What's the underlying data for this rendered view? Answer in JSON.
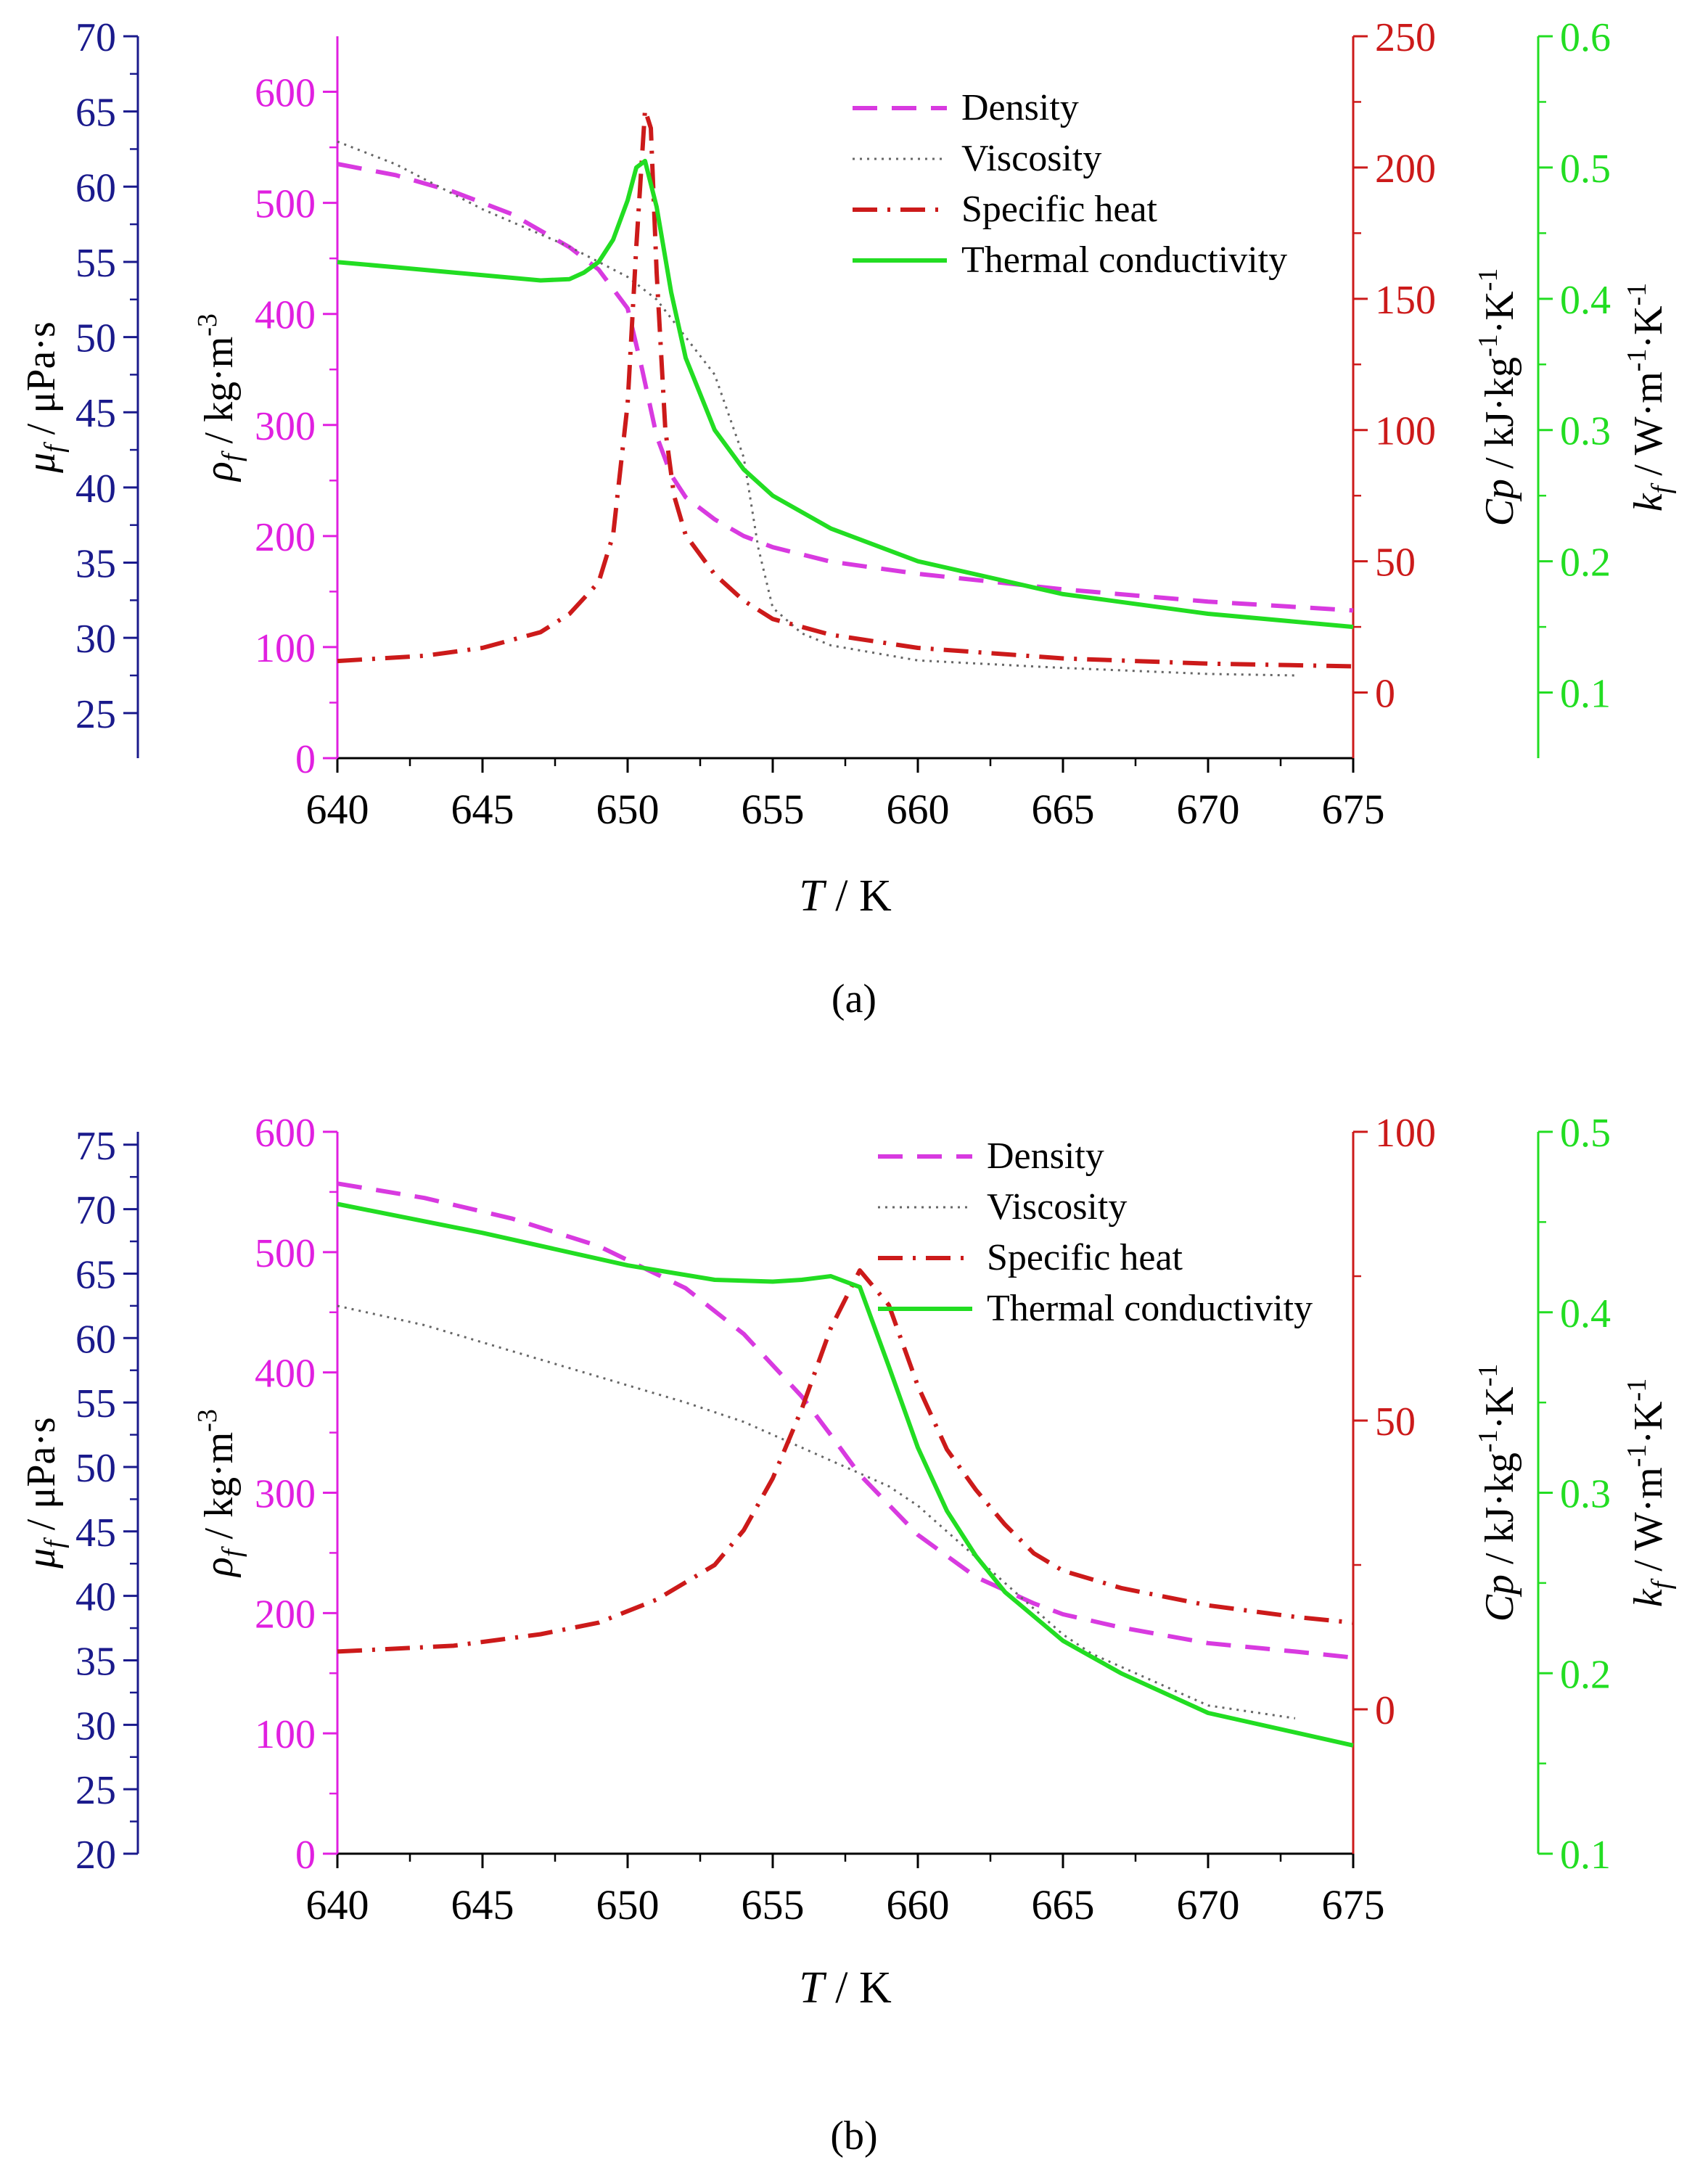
{
  "chart_data": [
    {
      "panel": "(a)",
      "type": "line",
      "xlabel": "T / K",
      "xlim": [
        640,
        675
      ],
      "xticks": [
        "640",
        "645",
        "650",
        "655",
        "660",
        "665",
        "670",
        "675"
      ],
      "axes": [
        {
          "id": "mu",
          "label": "μf / μPa·s",
          "color": "#1a1a8c",
          "range": [
            22,
            70
          ],
          "ticks": [
            "25",
            "30",
            "35",
            "40",
            "45",
            "50",
            "55",
            "60",
            "65",
            "70"
          ]
        },
        {
          "id": "rho",
          "label": "ρf / kg·m-3",
          "color": "#e020e0",
          "range": [
            0,
            650
          ],
          "ticks": [
            "0",
            "100",
            "200",
            "300",
            "400",
            "500",
            "600"
          ]
        },
        {
          "id": "cp",
          "label": "Cp / kJ·kg-1·K-1",
          "color": "#cc1a1a",
          "range": [
            -25,
            250
          ],
          "ticks": [
            "0",
            "50",
            "100",
            "150",
            "200",
            "250"
          ]
        },
        {
          "id": "k",
          "label": "kf / W·m-1·K-1",
          "color": "#22dd22",
          "range": [
            0.05,
            0.6
          ],
          "ticks": [
            "0.1",
            "0.2",
            "0.3",
            "0.4",
            "0.5",
            "0.6"
          ]
        }
      ],
      "series": [
        {
          "name": "Density",
          "axis": "rho",
          "color": "#d83ae0",
          "dash": "dash",
          "x": [
            640,
            642,
            644,
            646,
            648,
            649,
            650,
            650.5,
            651,
            651.5,
            652,
            653,
            654,
            655,
            657,
            660,
            665,
            670,
            675
          ],
          "y": [
            535,
            525,
            510,
            490,
            460,
            440,
            405,
            350,
            290,
            255,
            235,
            215,
            200,
            190,
            177,
            166,
            152,
            141,
            133
          ]
        },
        {
          "name": "Viscosity",
          "axis": "mu",
          "color": "#666666",
          "dash": "dot",
          "x": [
            640,
            642,
            645,
            648,
            650,
            651,
            652,
            653,
            654,
            654.5,
            655,
            656,
            657,
            660,
            665,
            670,
            673
          ],
          "y": [
            63,
            61.5,
            58.5,
            56,
            54,
            52.5,
            50,
            47.5,
            42,
            36,
            32,
            30.3,
            29.5,
            28.5,
            28,
            27.6,
            27.5
          ]
        },
        {
          "name": "Specific heat",
          "axis": "cp",
          "color": "#cc1a1a",
          "dash": "dashdot",
          "x": [
            640,
            643,
            645,
            647,
            648,
            649,
            649.5,
            650,
            650.3,
            650.6,
            650.8,
            651,
            651.3,
            651.6,
            652,
            653,
            654,
            655,
            657,
            660,
            665,
            670,
            675
          ],
          "y": [
            12,
            14,
            17,
            23,
            30,
            42,
            60,
            110,
            170,
            222,
            215,
            160,
            100,
            75,
            60,
            45,
            35,
            28,
            22,
            17,
            13,
            11,
            10
          ]
        },
        {
          "name": "Thermal conductivity",
          "axis": "k",
          "color": "#22dd22",
          "dash": "solid",
          "x": [
            640,
            642,
            644,
            646,
            647,
            648,
            648.5,
            649,
            649.5,
            650,
            650.3,
            650.6,
            651,
            651.5,
            652,
            653,
            654,
            655,
            657,
            660,
            665,
            670,
            675
          ],
          "y": [
            0.428,
            0.424,
            0.42,
            0.416,
            0.414,
            0.415,
            0.42,
            0.428,
            0.445,
            0.475,
            0.5,
            0.505,
            0.47,
            0.405,
            0.355,
            0.3,
            0.27,
            0.25,
            0.225,
            0.2,
            0.175,
            0.16,
            0.15
          ]
        }
      ],
      "legend": [
        "Density",
        "Viscosity",
        "Specific heat",
        "Thermal conductivity"
      ],
      "legend_position": "top-right"
    },
    {
      "panel": "(b)",
      "type": "line",
      "xlabel": "T / K",
      "xlim": [
        640,
        675
      ],
      "xticks": [
        "640",
        "645",
        "650",
        "655",
        "660",
        "665",
        "670",
        "675"
      ],
      "axes": [
        {
          "id": "mu",
          "label": "μf / μPa·s",
          "color": "#1a1a8c",
          "range": [
            20,
            76
          ],
          "ticks": [
            "20",
            "25",
            "30",
            "35",
            "40",
            "45",
            "50",
            "55",
            "60",
            "65",
            "70",
            "75"
          ]
        },
        {
          "id": "rho",
          "label": "ρf / kg·m-3",
          "color": "#e020e0",
          "range": [
            0,
            600
          ],
          "ticks": [
            "0",
            "100",
            "200",
            "300",
            "400",
            "500",
            "600"
          ]
        },
        {
          "id": "cp",
          "label": "Cp / kJ·kg-1·K-1",
          "color": "#cc1a1a",
          "range": [
            -25,
            100
          ],
          "ticks": [
            "0",
            "50",
            "100"
          ]
        },
        {
          "id": "k",
          "label": "kf / W·m-1·K-1",
          "color": "#22dd22",
          "range": [
            0.1,
            0.5
          ],
          "ticks": [
            "0.1",
            "0.2",
            "0.3",
            "0.4",
            "0.5"
          ]
        }
      ],
      "series": [
        {
          "name": "Density",
          "axis": "rho",
          "color": "#d83ae0",
          "dash": "dash",
          "x": [
            640,
            643,
            646,
            649,
            652,
            654,
            656,
            657,
            658,
            660,
            662,
            664,
            665,
            667,
            670,
            673,
            675
          ],
          "y": [
            557,
            545,
            528,
            505,
            470,
            432,
            380,
            348,
            315,
            265,
            230,
            208,
            199,
            188,
            175,
            168,
            163
          ]
        },
        {
          "name": "Viscosity",
          "axis": "mu",
          "color": "#666666",
          "dash": "dot",
          "x": [
            640,
            643,
            646,
            649,
            652,
            654,
            656,
            657,
            658,
            659,
            660,
            661,
            662,
            663,
            664,
            665,
            666,
            668,
            670,
            673
          ],
          "y": [
            62.5,
            61,
            59,
            57,
            55,
            53.5,
            51.5,
            50.5,
            49.5,
            48.5,
            47,
            45,
            43,
            41,
            39,
            37,
            35.5,
            33.5,
            31.5,
            30.5
          ]
        },
        {
          "name": "Specific heat",
          "axis": "cp",
          "color": "#cc1a1a",
          "dash": "dashdot",
          "x": [
            640,
            644,
            647,
            649,
            650,
            651,
            652,
            653,
            654,
            655,
            656,
            657,
            658,
            659,
            660,
            661,
            662,
            663,
            664,
            665,
            667,
            670,
            673,
            675
          ],
          "y": [
            10,
            11,
            13,
            15,
            17,
            19,
            22,
            25,
            31,
            40,
            52,
            66,
            76,
            70,
            56,
            45,
            38,
            32,
            27,
            24,
            21,
            18,
            16,
            15
          ]
        },
        {
          "name": "Thermal conductivity",
          "axis": "k",
          "color": "#22dd22",
          "dash": "solid",
          "x": [
            640,
            645,
            650,
            653,
            655,
            656,
            657,
            658,
            659,
            660,
            661,
            662,
            663,
            665,
            667,
            670,
            675
          ],
          "y": [
            0.46,
            0.444,
            0.426,
            0.418,
            0.417,
            0.418,
            0.42,
            0.414,
            0.37,
            0.325,
            0.29,
            0.265,
            0.245,
            0.218,
            0.2,
            0.178,
            0.16
          ]
        }
      ],
      "legend": [
        "Density",
        "Viscosity",
        "Specific heat",
        "Thermal conductivity"
      ],
      "legend_position": "top-right"
    }
  ],
  "captions": [
    "(a)",
    "(b)"
  ]
}
